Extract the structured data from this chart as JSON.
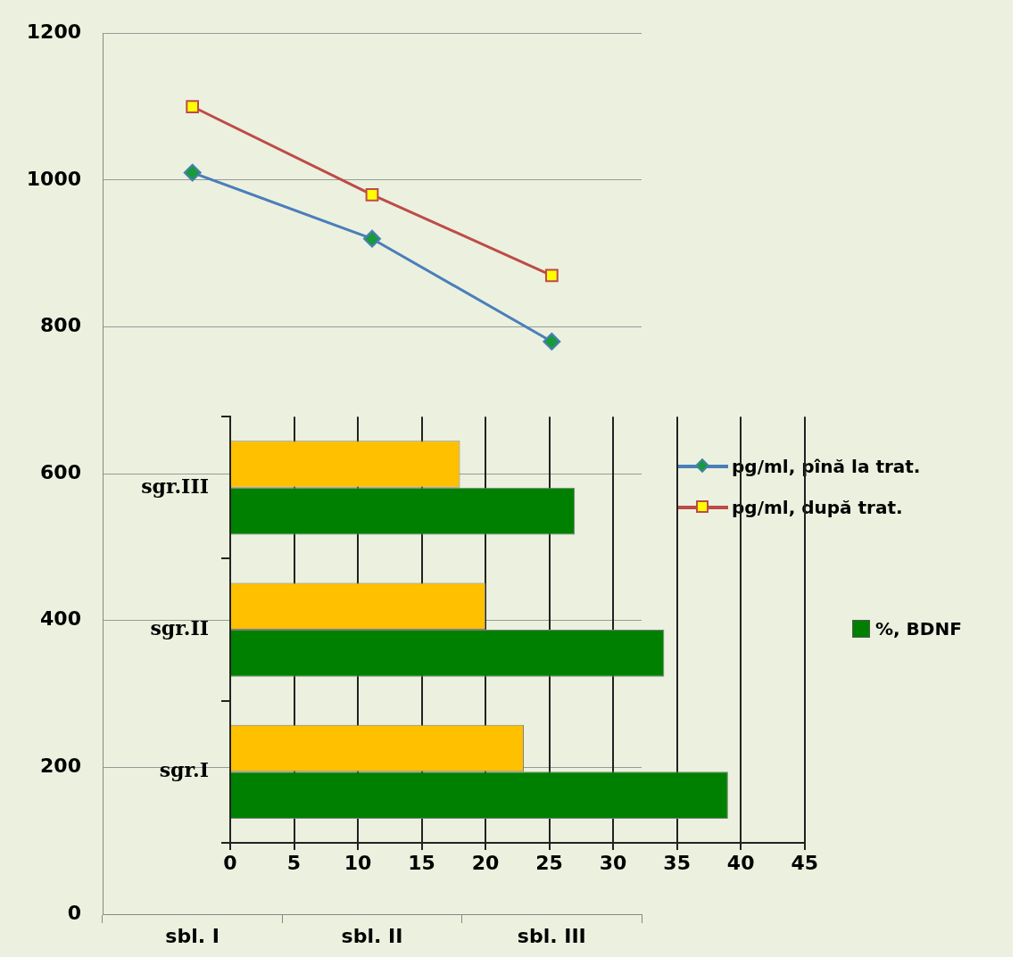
{
  "chart_data": [
    {
      "type": "line",
      "categories": [
        "sbl. I",
        "sbl. II",
        "sbl. III"
      ],
      "ylim": [
        0,
        1200
      ],
      "yticks": [
        0,
        200,
        400,
        600,
        800,
        1000,
        1200
      ],
      "grid": "y",
      "legend": "right",
      "line_style": "solid",
      "series": [
        {
          "name": "pg/ml, pînă la trat.",
          "color": "#4a7ebb",
          "marker": "diamond",
          "values": [
            1010,
            920,
            780
          ]
        },
        {
          "name": "pg/ml, după trat.",
          "color": "#be4b48",
          "marker": "square",
          "values": [
            1100,
            980,
            870
          ]
        }
      ]
    },
    {
      "type": "bar",
      "orientation": "horizontal",
      "categories": [
        "sgr.III",
        "sgr.II",
        "sgr.I"
      ],
      "xlim": [
        0,
        45
      ],
      "xticks": [
        0,
        5,
        10,
        15,
        20,
        25,
        30,
        35,
        40,
        45
      ],
      "grid": "x",
      "legend": "right",
      "series": [
        {
          "name": "%, BDNF",
          "color": "#008000",
          "values": [
            27,
            34,
            39
          ]
        },
        {
          "color": "#ffc000",
          "values": [
            18,
            20,
            23
          ]
        }
      ]
    }
  ]
}
